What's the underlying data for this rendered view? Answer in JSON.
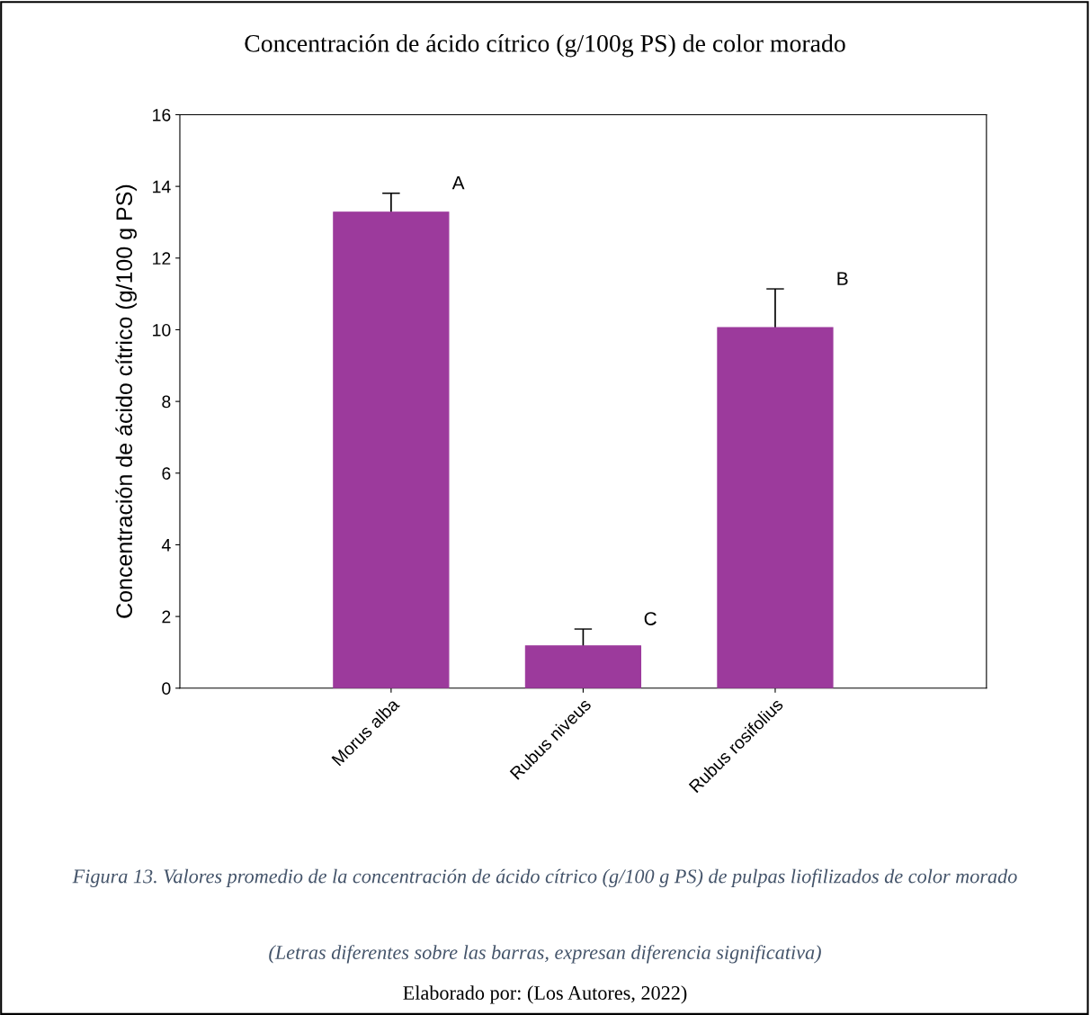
{
  "chart_data": {
    "type": "bar",
    "title": "Concentración de ácido cítrico (g/100g PS) de color morado",
    "ylabel": "Concentración de ácido cítrico (g/100 g PS)",
    "categories": [
      "Morus alba",
      "Rubus niveus",
      "Rubus rosifolius"
    ],
    "values": [
      13.28,
      1.18,
      10.06
    ],
    "errors": [
      0.53,
      0.47,
      1.08
    ],
    "color": "#9c3a9c",
    "ylim": [
      0,
      16
    ],
    "yticks": [
      0,
      2,
      4,
      6,
      8,
      10,
      12,
      14,
      16
    ],
    "grid": false,
    "legend": false,
    "annotations": [
      "A",
      "C",
      "B",
      "Figura 13. Valores promedio de la concentración de ácido cítrico (g/100 g PS) de pulpas liofilizados de color morado",
      "(Letras diferentes sobre las barras, expresan diferencia significativa)",
      "Elaborado por: (Los Autores, 2022)"
    ]
  }
}
